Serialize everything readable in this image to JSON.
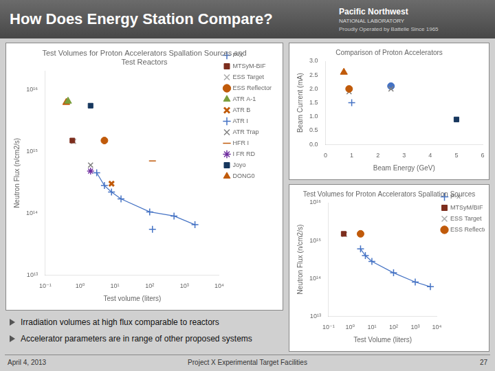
{
  "title": "How Does Energy Station Compare?",
  "annotations": [
    "Pacific Northwest",
    "NATIONAL LABORATORY",
    "Proudly Operated by Battelle Since 1965",
    "Irradiation volumes at high flux comparable to reactors",
    "Accelerator parameters are in range of other proposed systems",
    "April 4, 2013",
    "Project X Experimental Target Facilities",
    "27"
  ],
  "chart_data": [
    {
      "type": "scatter",
      "title": "Test Volumes for Proton Accelerators Spallation Sources and\nTest Reactors",
      "xlabel": "Test volume (liters)",
      "ylabel": "Neutron Flux (n/cm2/s)",
      "log": true,
      "grid": false,
      "legend": "right",
      "xlim": [
        0.1,
        10000
      ],
      "ylim": [
        10000000000000.0,
        2e+16
      ],
      "xticks": [
        {
          "value": 0.1,
          "label": "10⁻¹"
        },
        {
          "value": 1,
          "label": "10⁰"
        },
        {
          "value": 10,
          "label": "10¹"
        },
        {
          "value": 100,
          "label": "10²"
        },
        {
          "value": 1000,
          "label": "10³"
        },
        {
          "value": 10000,
          "label": "10⁴"
        }
      ],
      "yticks": [
        {
          "value": 10000000000000.0,
          "label": "10¹³"
        },
        {
          "value": 100000000000000.0,
          "label": "10¹⁴"
        },
        {
          "value": 1000000000000000.0,
          "label": "10¹⁵"
        },
        {
          "value": 1e+16,
          "label": "10¹⁶"
        }
      ],
      "series": [
        {
          "name": "P-X",
          "color": "#4472c4",
          "marker": "plus",
          "line_style": "solid",
          "x": [
            3,
            5,
            8,
            15,
            100,
            500,
            2000
          ],
          "values": [
            450000000000000.0,
            280000000000000.0,
            220000000000000.0,
            170000000000000.0,
            105000000000000.0,
            90000000000000.0,
            65000000000000.0
          ]
        },
        {
          "name": "MTSyM-BIF",
          "color": "#7d2e1e",
          "marker": "square",
          "x": [
            0.6
          ],
          "values": [
            1500000000000000.0
          ]
        },
        {
          "name": "ESS Target",
          "color": "#aaaaaa",
          "marker": "x",
          "x": [
            0.65
          ],
          "values": [
            1450000000000000.0
          ]
        },
        {
          "name": "ESS Reflector",
          "color": "#c05a0a",
          "marker": "circle",
          "x": [
            5
          ],
          "values": [
            1500000000000000.0
          ]
        },
        {
          "name": "ATR A-1",
          "color": "#7a9e3b",
          "marker": "triangle",
          "x": [
            0.45
          ],
          "values": [
            6500000000000000.0
          ]
        },
        {
          "name": "ATR B",
          "color": "#c05a0a",
          "marker": "thick_x",
          "x": [
            8
          ],
          "values": [
            300000000000000.0
          ]
        },
        {
          "name": "ATR I",
          "color": "#4472c4",
          "marker": "plus",
          "x": [
            120
          ],
          "values": [
            55000000000000.0
          ]
        },
        {
          "name": "ATR Trap",
          "color": "#808080",
          "marker": "x",
          "x": [
            2
          ],
          "values": [
            600000000000000.0
          ]
        },
        {
          "name": "HFR I",
          "color": "#c05a0a",
          "marker": "hline",
          "x": [
            120
          ],
          "values": [
            700000000000000.0
          ]
        },
        {
          "name": "I FR RD",
          "color": "#7030a0",
          "marker": "star",
          "x": [
            2
          ],
          "values": [
            480000000000000.0
          ]
        },
        {
          "name": "Joyo",
          "color": "#17375e",
          "marker": "square",
          "x": [
            2
          ],
          "values": [
            5500000000000000.0
          ]
        },
        {
          "name": "DONG0",
          "color": "#c05a0a",
          "marker": "triangle",
          "x": [
            0.4
          ],
          "values": [
            6200000000000000.0
          ]
        }
      ]
    },
    {
      "type": "scatter",
      "title": "Comparison of Proton Accelerators",
      "xlabel": "Beam Energy (GeV)",
      "ylabel": "Beam Current (mA)",
      "grid": false,
      "xlim": [
        0,
        6
      ],
      "ylim": [
        0,
        3
      ],
      "xticks": [
        0,
        1,
        2,
        3,
        4,
        5,
        6
      ],
      "yticks": [
        {
          "value": 0,
          "label": "0.0"
        },
        0.5,
        {
          "value": 1,
          "label": "1.0"
        },
        1.5,
        {
          "value": 2,
          "label": "2.0"
        },
        2.5,
        {
          "value": 3,
          "label": "3.0"
        }
      ],
      "series": [
        {
          "color": "#c05a0a",
          "marker": "triangle",
          "x": [
            0.7
          ],
          "values": [
            2.6
          ]
        },
        {
          "color": "#c05a0a",
          "marker": "circle",
          "x": [
            0.9
          ],
          "values": [
            2.0
          ]
        },
        {
          "color": "#808080",
          "marker": "x",
          "x": [
            0.9
          ],
          "values": [
            1.9
          ]
        },
        {
          "color": "#4472c4",
          "marker": "plus",
          "x": [
            1.0
          ],
          "values": [
            1.5
          ]
        },
        {
          "color": "#808080",
          "marker": "x",
          "x": [
            2.5
          ],
          "values": [
            2.0
          ]
        },
        {
          "color": "#4472c4",
          "marker": "circle",
          "x": [
            2.5
          ],
          "values": [
            2.1
          ]
        },
        {
          "color": "#17375e",
          "marker": "square",
          "x": [
            5.0
          ],
          "values": [
            0.9
          ]
        }
      ]
    },
    {
      "type": "scatter",
      "title": "Test Volumes for Proton Accelerators Spallation Sources",
      "xlabel": "Test Volume (liters)",
      "ylabel": "Neutron Flux (n/cm2/s)",
      "log": true,
      "grid": false,
      "legend": "right",
      "xlim": [
        0.1,
        10000
      ],
      "ylim": [
        10000000000000.0,
        1e+16
      ],
      "xticks": [
        {
          "value": 0.1,
          "label": "10⁻¹"
        },
        {
          "value": 1,
          "label": "10⁰"
        },
        {
          "value": 10,
          "label": "10¹"
        },
        {
          "value": 100,
          "label": "10²"
        },
        {
          "value": 1000,
          "label": "10³"
        },
        {
          "value": 10000,
          "label": "10⁴"
        }
      ],
      "yticks": [
        {
          "value": 10000000000000.0,
          "label": "10¹³"
        },
        {
          "value": 100000000000000.0,
          "label": "10¹⁴"
        },
        {
          "value": 1000000000000000.0,
          "label": "10¹⁵"
        },
        {
          "value": 1e+16,
          "label": "10¹⁶"
        }
      ],
      "series": [
        {
          "name": "P-X",
          "color": "#4472c4",
          "marker": "plus",
          "line_style": "solid",
          "x": [
            3,
            5,
            10,
            100,
            1000,
            5000
          ],
          "values": [
            600000000000000.0,
            400000000000000.0,
            280000000000000.0,
            140000000000000.0,
            80000000000000.0,
            60000000000000.0
          ]
        },
        {
          "name": "MTSyM/BIF",
          "color": "#7d2e1e",
          "marker": "square",
          "x": [
            0.5
          ],
          "values": [
            1500000000000000.0
          ]
        },
        {
          "name": "ESS Target",
          "color": "#aaaaaa",
          "marker": "x",
          "x": [
            0.55
          ],
          "values": [
            1450000000000000.0
          ]
        },
        {
          "name": "ESS Reflector",
          "color": "#c05a0a",
          "marker": "circle",
          "x": [
            3
          ],
          "values": [
            1500000000000000.0
          ]
        }
      ]
    }
  ]
}
